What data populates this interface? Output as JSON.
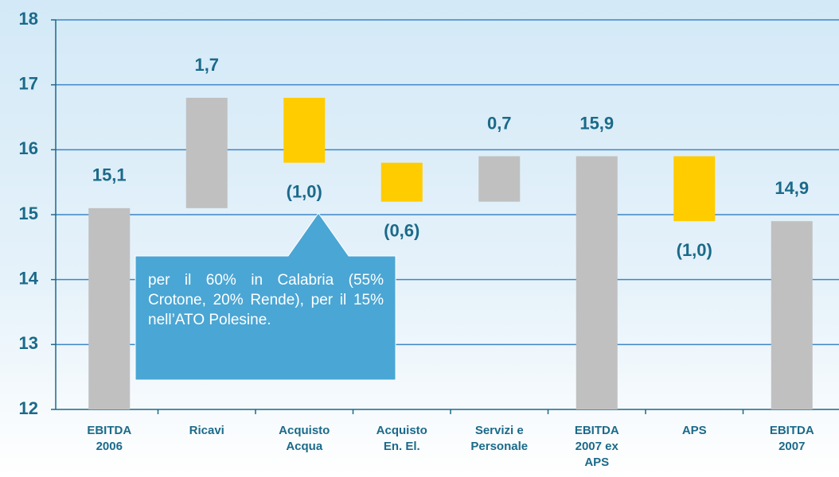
{
  "chart_data": {
    "type": "waterfall",
    "categories": [
      "EBITDA 2006",
      "Ricavi",
      "Acquisto Acqua",
      "Acquisto En. El.",
      "Servizi e Personale",
      "EBITDA 2007 ex APS",
      "APS",
      "EBITDA 2007"
    ],
    "values": [
      15.1,
      1.7,
      -1.0,
      -0.6,
      0.7,
      15.9,
      -1.0,
      14.9
    ],
    "value_labels": [
      "15,1",
      "1,7",
      "(1,0)",
      "(0,6)",
      "0,7",
      "15,9",
      "(1,0)",
      "14,9"
    ],
    "measure": [
      "total",
      "relative",
      "relative",
      "relative",
      "relative",
      "total",
      "relative",
      "total"
    ],
    "increase_color": "#c0c0c0",
    "decrease_color": "#ffcc00",
    "total_color": "#c0c0c0",
    "ylim": [
      12,
      18
    ],
    "yticks": [
      12,
      13,
      14,
      15,
      16,
      17,
      18
    ],
    "grid": true,
    "annotation": "per il 60% in Calabria (55% Crotone, 20% Rende), per il 15% nell’ATO Polesine."
  }
}
